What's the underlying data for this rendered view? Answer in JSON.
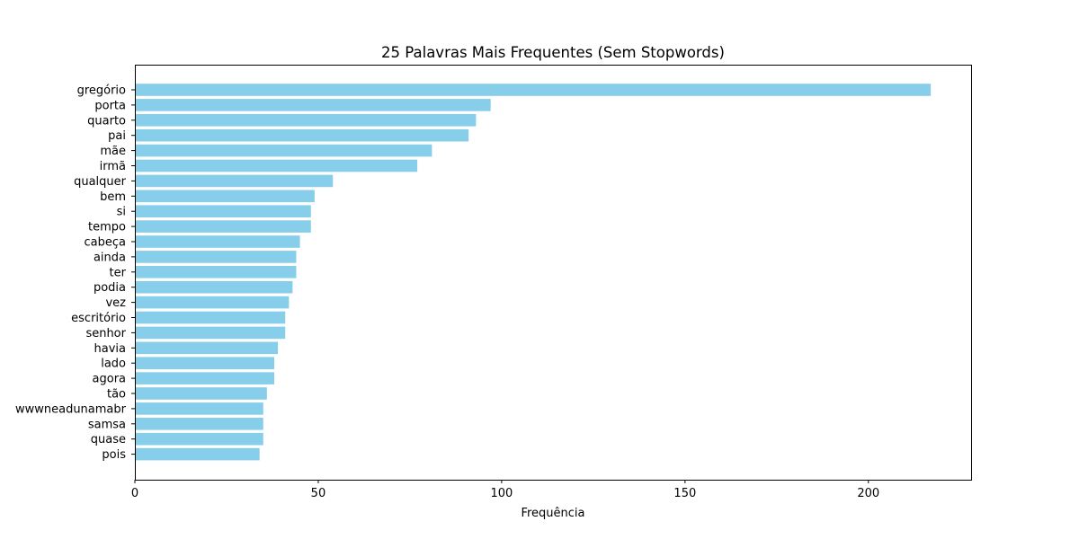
{
  "chart_data": {
    "type": "bar",
    "orientation": "horizontal",
    "title": "25 Palavras Mais Frequentes (Sem Stopwords)",
    "xlabel": "Frequência",
    "ylabel": "",
    "xlim": [
      0,
      228
    ],
    "xticks": [
      0,
      50,
      100,
      150,
      200
    ],
    "categories": [
      "gregório",
      "porta",
      "quarto",
      "pai",
      "mãe",
      "irmã",
      "qualquer",
      "bem",
      "si",
      "tempo",
      "cabeça",
      "ainda",
      "ter",
      "podia",
      "vez",
      "escritório",
      "senhor",
      "havia",
      "lado",
      "agora",
      "tão",
      "wwwneadunamabr",
      "samsa",
      "quase",
      "pois"
    ],
    "values": [
      217,
      97,
      93,
      91,
      81,
      77,
      54,
      49,
      48,
      48,
      45,
      44,
      44,
      43,
      42,
      41,
      41,
      39,
      38,
      38,
      36,
      35,
      35,
      35,
      34
    ],
    "bar_color": "#87ceeb",
    "grid": false,
    "legend": "none"
  }
}
